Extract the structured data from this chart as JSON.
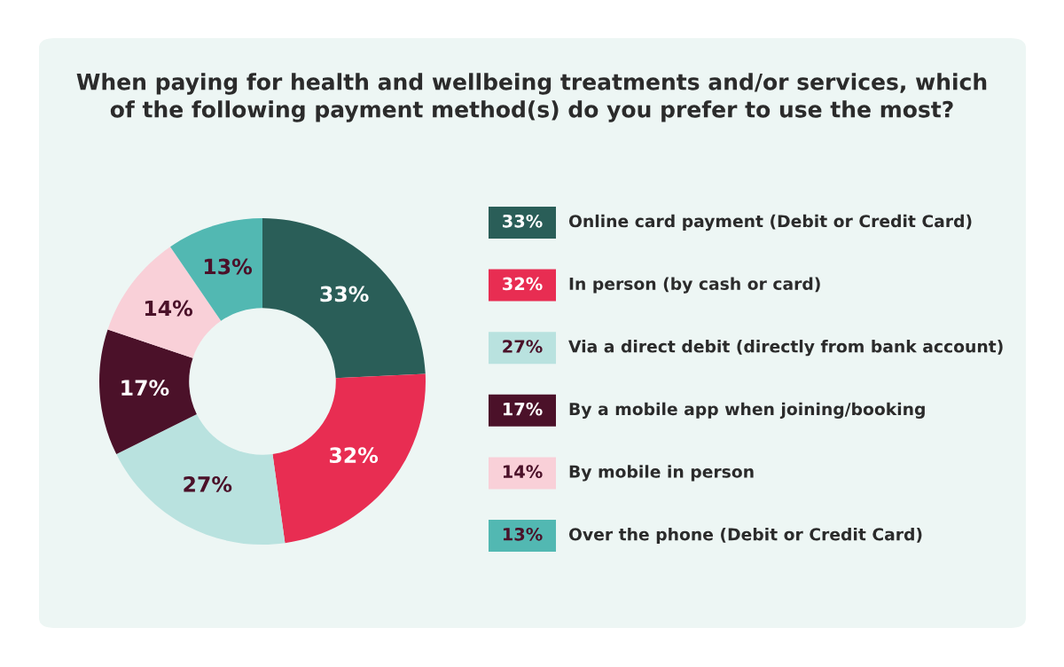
{
  "chart_data": {
    "type": "donut",
    "title": "When paying for health and wellbeing treatments and/or services, which\nof the following payment method(s) do you prefer to use the most?",
    "categories": [
      "Online card payment (Debit or Credit Card)",
      "In person (by cash or card)",
      "Via a direct debit (directly from bank account)",
      "By a mobile app when joining/booking",
      "By mobile in person",
      "Over the phone (Debit or Credit Card)"
    ],
    "values": [
      33,
      32,
      27,
      17,
      14,
      13
    ],
    "value_labels": [
      "33%",
      "32%",
      "27%",
      "17%",
      "14%",
      "13%"
    ],
    "colors": [
      "#2a5e58",
      "#e82d52",
      "#b9e2df",
      "#4b1129",
      "#f9d0d8",
      "#52b8b2"
    ],
    "legend": "right"
  }
}
